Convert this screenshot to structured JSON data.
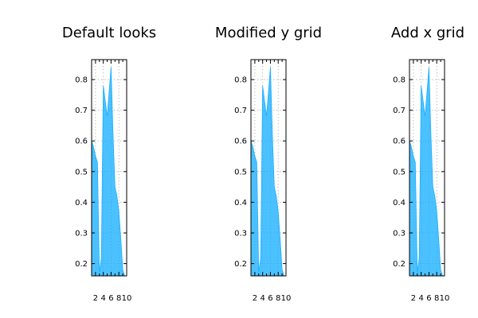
{
  "chart_data": [
    {
      "type": "area",
      "title": "Default looks",
      "x": [
        1,
        1.5,
        2,
        2.5,
        3,
        3.5,
        4,
        4.5,
        5,
        5.5,
        6,
        6.5,
        7,
        7.5,
        8,
        8.5,
        9,
        9.5,
        10
      ],
      "y": [
        0.6,
        0.58,
        0.55,
        0.53,
        0.17,
        0.22,
        0.78,
        0.73,
        0.68,
        0.76,
        0.84,
        0.62,
        0.45,
        0.42,
        0.37,
        0.28,
        0.18,
        0.16,
        0.15
      ],
      "xticks": [
        2,
        4,
        6,
        8,
        10
      ],
      "yticks": [
        0.2,
        0.3,
        0.4,
        0.5,
        0.6,
        0.7,
        0.8
      ],
      "xlim": [
        1,
        10
      ],
      "ylim": [
        0.16,
        0.865
      ],
      "xgrid": "dotted",
      "ygrid": "dotted",
      "color": "#1ab0ff"
    },
    {
      "type": "area",
      "title": "Modified y grid",
      "x": [
        1,
        1.5,
        2,
        2.5,
        3,
        3.5,
        4,
        4.5,
        5,
        5.5,
        6,
        6.5,
        7,
        7.5,
        8,
        8.5,
        9,
        9.5,
        10
      ],
      "y": [
        0.6,
        0.58,
        0.55,
        0.53,
        0.17,
        0.22,
        0.78,
        0.73,
        0.68,
        0.76,
        0.84,
        0.62,
        0.45,
        0.42,
        0.37,
        0.28,
        0.18,
        0.16,
        0.15
      ],
      "xticks": [
        2,
        4,
        6,
        8,
        10
      ],
      "yticks": [
        0.2,
        0.3,
        0.4,
        0.5,
        0.6,
        0.7,
        0.8
      ],
      "xlim": [
        1,
        10
      ],
      "ylim": [
        0.16,
        0.865
      ],
      "xgrid": "dotted",
      "ygrid": "dotted",
      "color": "#1ab0ff"
    },
    {
      "type": "area",
      "title": "Add x grid",
      "x": [
        1,
        1.5,
        2,
        2.5,
        3,
        3.5,
        4,
        4.5,
        5,
        5.5,
        6,
        6.5,
        7,
        7.5,
        8,
        8.5,
        9,
        9.5,
        10
      ],
      "y": [
        0.6,
        0.58,
        0.55,
        0.53,
        0.17,
        0.22,
        0.78,
        0.73,
        0.68,
        0.76,
        0.84,
        0.62,
        0.45,
        0.42,
        0.37,
        0.28,
        0.18,
        0.16,
        0.15
      ],
      "xticks": [
        2,
        4,
        6,
        8,
        10
      ],
      "yticks": [
        0.2,
        0.3,
        0.4,
        0.5,
        0.6,
        0.7,
        0.8
      ],
      "xlim": [
        1,
        10
      ],
      "ylim": [
        0.16,
        0.865
      ],
      "xgrid": "dotted",
      "ygrid": "dotted",
      "color": "#1ab0ff"
    }
  ]
}
